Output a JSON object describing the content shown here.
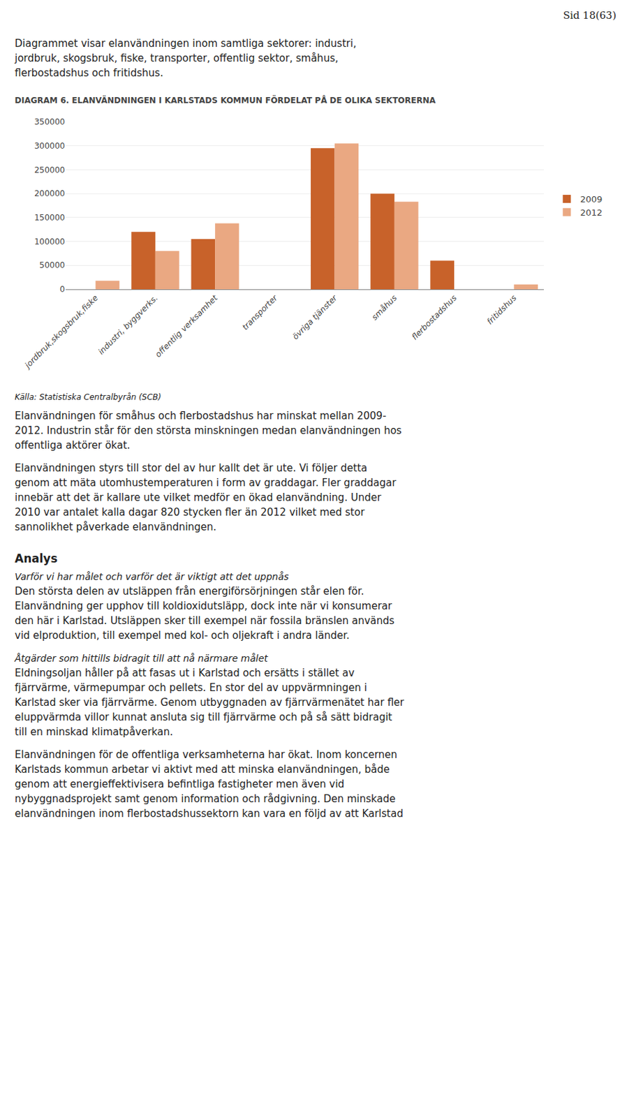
{
  "page_label": "Sid 18(63)",
  "intro": [
    "Diagrammet visar elanvändningen inom samtliga sektorer: industri,",
    "jordbruk, skogsbruk, fiske, transporter, offentlig sektor, småhus,",
    "flerbostadshus och fritidshus."
  ],
  "chart_data": {
    "type": "bar",
    "title": "DIAGRAM 6. ELANVÄNDNINGEN I KARLSTADS KOMMUN FÖRDELAT PÅ DE OLIKA SEKTORERNA",
    "categories": [
      "jordbruk,skogsbruk,fiske",
      "industri, byggverks.",
      "offentlig verksamhet",
      "transporter",
      "övriga tjänster",
      "småhus",
      "flerbostadshus",
      "fritidshus"
    ],
    "series": [
      {
        "name": "2009",
        "color": "#C8622A",
        "values": [
          0,
          120000,
          105000,
          0,
          295000,
          200000,
          60000,
          0
        ]
      },
      {
        "name": "2012",
        "color": "#EAA882",
        "values": [
          18000,
          80000,
          138000,
          0,
          305000,
          183000,
          0,
          10000
        ]
      }
    ],
    "ylim": [
      0,
      350000
    ],
    "yticks": [
      0,
      50000,
      100000,
      150000,
      200000,
      250000,
      300000,
      350000
    ],
    "grid": true,
    "legend": "right"
  },
  "source": "Källa: Statistiska Centralbyrån (SCB)",
  "body": [
    [
      "Elanvändningen för småhus och flerbostadshus har minskat mellan 2009-",
      "2012. Industrin står för den största minskningen medan elanvändningen hos",
      "offentliga aktörer ökat."
    ],
    [
      "Elanvändningen styrs till stor del av hur kallt det är ute. Vi följer detta",
      "genom att mäta utomhustemperaturen i form av graddagar. Fler graddagar",
      "innebär att det är kallare ute vilket medför en ökad elanvändning. Under",
      "2010 var antalet kalla dagar 820 stycken fler än 2012 vilket med stor",
      "sannolikhet påverkade elanvändningen."
    ]
  ],
  "analysis": {
    "title": "Analys",
    "sections": [
      {
        "subtitle": "Varför vi har målet och varför det är viktigt att det uppnås",
        "paragraphs": [
          [
            "Den största delen av utsläppen från energiförsörjningen står elen för.",
            "Elanvändning ger upphov till koldioxidutsläpp, dock inte när vi konsumerar",
            "den här i Karlstad. Utsläppen sker till exempel när fossila bränslen används",
            "vid elproduktion, till exempel med kol- och oljekraft i andra länder."
          ]
        ]
      },
      {
        "subtitle": "Åtgärder som hittills bidragit till att nå närmare målet",
        "paragraphs": [
          [
            "Eldningsoljan håller på att fasas ut i Karlstad och ersätts i stället av",
            "fjärrvärme, värmepumpar och pellets. En stor del av uppvärmningen i",
            "Karlstad sker via fjärrvärme. Genom utbyggnaden av fjärrvärmenätet har fler",
            "eluppvärmda villor kunnat ansluta sig till fjärrvärme och på så sätt bidragit",
            "till en minskad klimatpåverkan."
          ],
          [
            "Elanvändningen för de offentliga verksamheterna har ökat. Inom koncernen",
            "Karlstads kommun arbetar vi aktivt med att minska elanvändningen, både",
            "genom att energieffektivisera befintliga fastigheter men även vid",
            "nybyggnadsprojekt samt genom information och rådgivning. Den minskade",
            "elanvändningen inom flerbostadshussektorn kan vara en följd av att Karlstad"
          ]
        ]
      }
    ]
  }
}
